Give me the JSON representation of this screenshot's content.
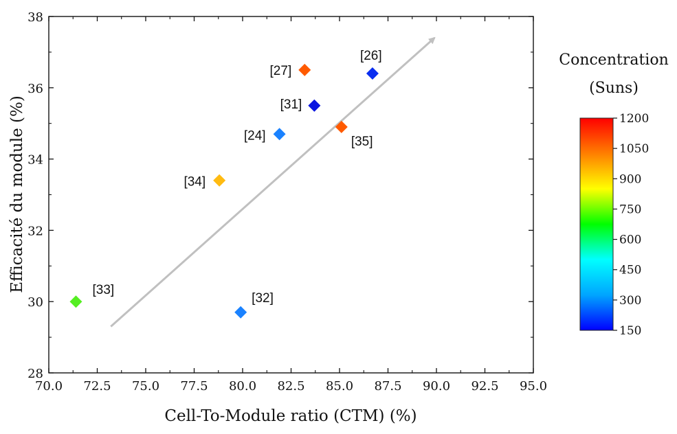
{
  "chart_data": {
    "type": "scatter",
    "title": "",
    "xlabel": "Cell-To-Module ratio (CTM) (%)",
    "ylabel": "Efficacité du module (%)",
    "xlim": [
      70.0,
      95.0
    ],
    "ylim": [
      28,
      38
    ],
    "x_ticks": [
      "70.0",
      "72.5",
      "75.0",
      "77.5",
      "80.0",
      "82.5",
      "85.0",
      "87.5",
      "90.0",
      "92.5",
      "95.0"
    ],
    "y_ticks": [
      "28",
      "30",
      "32",
      "34",
      "36",
      "38"
    ],
    "points": [
      {
        "label": "[33]",
        "x": 71.4,
        "y": 30.0,
        "concentration": 720,
        "color": "#55ee22"
      },
      {
        "label": "[32]",
        "x": 79.9,
        "y": 29.7,
        "concentration": 300,
        "color": "#1a82ff"
      },
      {
        "label": "[34]",
        "x": 78.8,
        "y": 33.4,
        "concentration": 1000,
        "color": "#ffbb11"
      },
      {
        "label": "[24]",
        "x": 81.9,
        "y": 34.7,
        "concentration": 300,
        "color": "#1a82ff"
      },
      {
        "label": "[31]",
        "x": 83.7,
        "y": 35.5,
        "concentration": 150,
        "color": "#0a16e0"
      },
      {
        "label": "[27]",
        "x": 83.2,
        "y": 36.5,
        "concentration": 1100,
        "color": "#ff5a00"
      },
      {
        "label": "[35]",
        "x": 85.1,
        "y": 34.9,
        "concentration": 1100,
        "color": "#ff5a00"
      },
      {
        "label": "[26]",
        "x": 86.7,
        "y": 36.4,
        "concentration": 200,
        "color": "#0a2ef0"
      }
    ],
    "trend_arrow": {
      "from": [
        73.2,
        29.3
      ],
      "to": [
        89.9,
        37.4
      ],
      "color": "#c0c0c0"
    },
    "colorbar": {
      "title_line1": "Concentration",
      "title_line2": "(Suns)",
      "min": 150,
      "max": 1200,
      "ticks": [
        "150",
        "300",
        "450",
        "600",
        "750",
        "900",
        "1050",
        "1200"
      ],
      "colors": [
        "#0000ff",
        "#00a5ff",
        "#00ffff",
        "#00ff00",
        "#ffff00",
        "#ff7f00",
        "#ff0000"
      ]
    },
    "grid": false,
    "legend": "colorbar-right"
  }
}
